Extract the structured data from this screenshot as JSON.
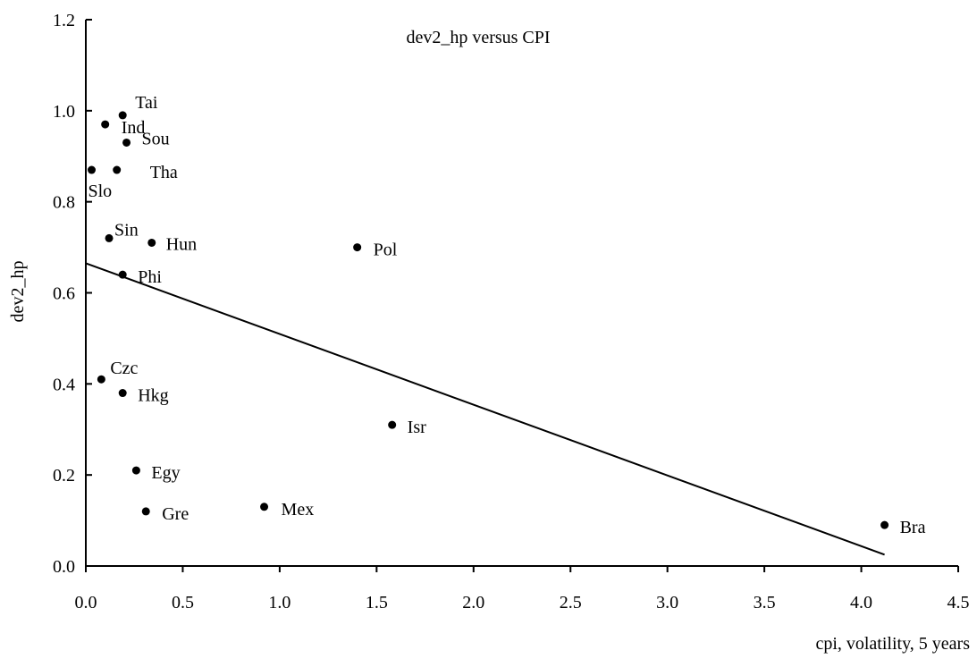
{
  "chart_data": {
    "type": "scatter",
    "title": "dev2_hp versus CPI",
    "xlabel": "cpi, volatility, 5 years",
    "ylabel": "dev2_hp",
    "xlim": [
      0,
      4.5
    ],
    "ylim": [
      0,
      1.2
    ],
    "xticks": [
      "0.0",
      "0.5",
      "1.0",
      "1.5",
      "2.0",
      "2.5",
      "3.0",
      "3.5",
      "4.0",
      "4.5"
    ],
    "yticks": [
      "0.0",
      "0.2",
      "0.4",
      "0.6",
      "0.8",
      "1.0",
      "1.2"
    ],
    "grid": false,
    "points": [
      {
        "label": "Tai",
        "x": 0.19,
        "y": 0.99
      },
      {
        "label": "Ind",
        "x": 0.1,
        "y": 0.97
      },
      {
        "label": "Sou",
        "x": 0.21,
        "y": 0.93
      },
      {
        "label": "Tha",
        "x": 0.16,
        "y": 0.87
      },
      {
        "label": "Slo",
        "x": 0.03,
        "y": 0.87
      },
      {
        "label": "Sin",
        "x": 0.12,
        "y": 0.72
      },
      {
        "label": "Hun",
        "x": 0.34,
        "y": 0.71
      },
      {
        "label": "Pol",
        "x": 1.4,
        "y": 0.7
      },
      {
        "label": "Phi",
        "x": 0.19,
        "y": 0.64
      },
      {
        "label": "Czc",
        "x": 0.08,
        "y": 0.41
      },
      {
        "label": "Hkg",
        "x": 0.19,
        "y": 0.38
      },
      {
        "label": "Isr",
        "x": 1.58,
        "y": 0.31
      },
      {
        "label": "Egy",
        "x": 0.26,
        "y": 0.21
      },
      {
        "label": "Gre",
        "x": 0.31,
        "y": 0.12
      },
      {
        "label": "Mex",
        "x": 0.92,
        "y": 0.13
      },
      {
        "label": "Bra",
        "x": 4.12,
        "y": 0.09
      }
    ],
    "fit_line": {
      "x": [
        0.0,
        4.12
      ],
      "y": [
        0.665,
        0.025
      ]
    }
  }
}
